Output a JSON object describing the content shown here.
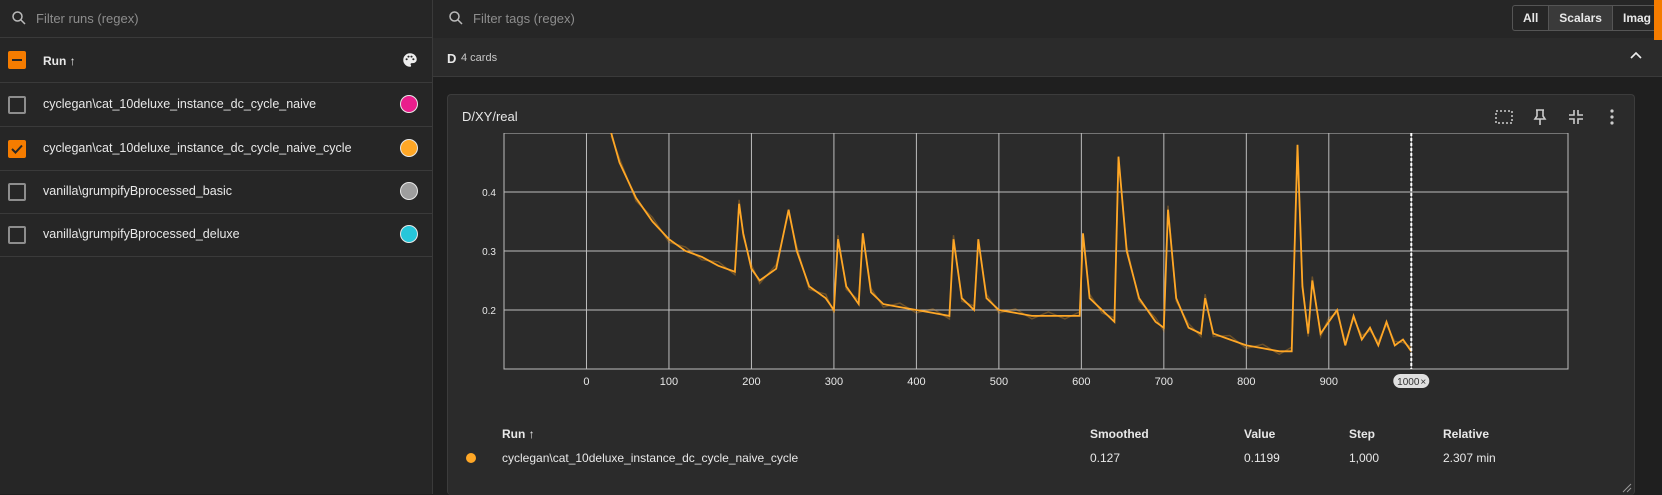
{
  "runs_panel": {
    "search_placeholder": "Filter runs (regex)",
    "header_label": "Run ↑",
    "runs": [
      {
        "name": "cyclegan\\cat_10deluxe_instance_dc_cycle_naive",
        "checked": false,
        "color": "#e91e8c"
      },
      {
        "name": "cyclegan\\cat_10deluxe_instance_dc_cycle_naive_cycle",
        "checked": true,
        "color": "#ffa726"
      },
      {
        "name": "vanilla\\grumpifyBprocessed_basic",
        "checked": false,
        "color": "#9e9e9e"
      },
      {
        "name": "vanilla\\grumpifyBprocessed_deluxe",
        "checked": false,
        "color": "#26c6da"
      }
    ]
  },
  "tags": {
    "search_placeholder": "Filter tags (regex)",
    "filters": [
      "All",
      "Scalars",
      "Imag"
    ],
    "active_filter": "Scalars"
  },
  "group": {
    "name": "D",
    "count": "4 cards"
  },
  "card": {
    "title": "D/XY/real"
  },
  "chart_data": {
    "type": "line",
    "title": "D/XY/real",
    "xlim": [
      -100,
      1190
    ],
    "ylim": [
      0.1,
      0.5
    ],
    "x_ticks": [
      "-0",
      "0",
      "100",
      "200",
      "300",
      "400",
      "500",
      "600",
      "700",
      "800",
      "900",
      "1000"
    ],
    "y_ticks": [
      "0.2",
      "0.3",
      "0.4"
    ],
    "cursor_label": "1000",
    "series": [
      {
        "name": "cyclegan\\cat_10deluxe_instance_dc_cycle_naive_cycle",
        "color": "#ffa726",
        "x": [
          30,
          40,
          60,
          80,
          100,
          120,
          140,
          160,
          180,
          185,
          190,
          200,
          210,
          230,
          245,
          255,
          270,
          290,
          300,
          305,
          315,
          330,
          335,
          345,
          360,
          380,
          400,
          420,
          440,
          445,
          455,
          470,
          475,
          485,
          500,
          520,
          540,
          560,
          580,
          598,
          602,
          610,
          625,
          640,
          645,
          655,
          670,
          690,
          700,
          705,
          715,
          730,
          745,
          750,
          760,
          780,
          800,
          820,
          840,
          855,
          862,
          868,
          875,
          880,
          890,
          900,
          910,
          920,
          930,
          940,
          950,
          960,
          970,
          980,
          990,
          1000
        ],
        "y": [
          0.5,
          0.45,
          0.39,
          0.35,
          0.32,
          0.3,
          0.29,
          0.275,
          0.265,
          0.38,
          0.33,
          0.27,
          0.25,
          0.27,
          0.37,
          0.3,
          0.24,
          0.22,
          0.2,
          0.32,
          0.24,
          0.21,
          0.33,
          0.23,
          0.21,
          0.205,
          0.2,
          0.195,
          0.19,
          0.32,
          0.22,
          0.2,
          0.32,
          0.22,
          0.2,
          0.195,
          0.19,
          0.19,
          0.19,
          0.19,
          0.33,
          0.22,
          0.2,
          0.18,
          0.46,
          0.3,
          0.22,
          0.18,
          0.17,
          0.37,
          0.22,
          0.17,
          0.16,
          0.22,
          0.16,
          0.15,
          0.14,
          0.135,
          0.13,
          0.13,
          0.48,
          0.24,
          0.16,
          0.25,
          0.16,
          0.18,
          0.2,
          0.14,
          0.19,
          0.15,
          0.17,
          0.14,
          0.18,
          0.14,
          0.15,
          0.13
        ]
      }
    ]
  },
  "legend_table": {
    "headers": {
      "run": "Run ↑",
      "smoothed": "Smoothed",
      "value": "Value",
      "step": "Step",
      "relative": "Relative"
    },
    "row": {
      "run": "cyclegan\\cat_10deluxe_instance_dc_cycle_naive_cycle",
      "smoothed": "0.127",
      "value": "0.1199",
      "step": "1,000",
      "relative": "2.307 min"
    }
  }
}
